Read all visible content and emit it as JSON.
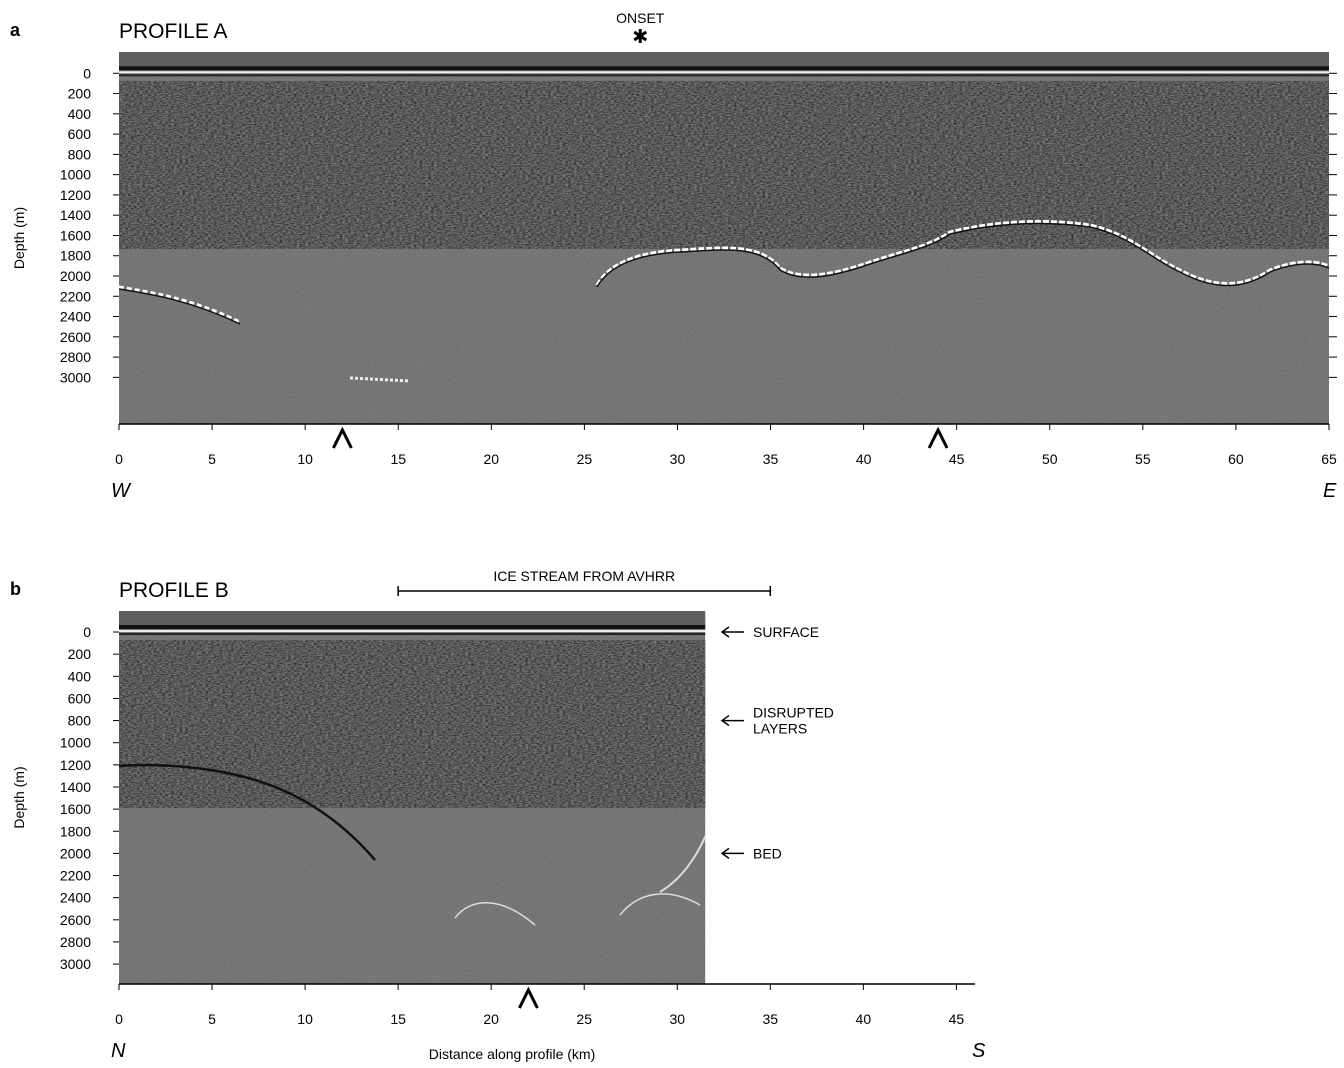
{
  "panels": [
    {
      "letter": "a",
      "title": "PROFILE A",
      "ylabel": "Depth (m)",
      "ylim": [
        -210,
        3460
      ],
      "yticks": [
        0,
        200,
        400,
        600,
        800,
        1000,
        1200,
        1400,
        1600,
        1800,
        2000,
        2200,
        2400,
        2600,
        2800,
        3000
      ],
      "xlim": [
        0,
        65
      ],
      "xticks": [
        0,
        5,
        10,
        15,
        20,
        25,
        30,
        35,
        40,
        45,
        50,
        55,
        60,
        65
      ],
      "image_xlim": [
        0,
        65
      ],
      "left_end": "W",
      "right_end": "E",
      "onset": {
        "label": "ONSET",
        "x": 28
      },
      "carets": [
        12,
        44
      ]
    },
    {
      "letter": "b",
      "title": "PROFILE B",
      "ylabel": "Depth (m)",
      "ylim": [
        -190,
        3180
      ],
      "yticks": [
        0,
        200,
        400,
        600,
        800,
        1000,
        1200,
        1400,
        1600,
        1800,
        2000,
        2200,
        2400,
        2600,
        2800,
        3000
      ],
      "xlim": [
        0,
        46
      ],
      "xticks": [
        0,
        5,
        10,
        15,
        20,
        25,
        30,
        35,
        40,
        45
      ],
      "image_xlim": [
        0,
        31.5
      ],
      "left_end": "N",
      "right_end": "S",
      "xlabel": "Distance along profile (km)",
      "bracket": {
        "label": "ICE STREAM FROM AVHRR",
        "x": [
          15,
          35
        ]
      },
      "callouts": [
        {
          "lines": [
            "SURFACE"
          ],
          "depth": 0
        },
        {
          "lines": [
            "DISRUPTED",
            "LAYERS"
          ],
          "depth": 800
        },
        {
          "lines": [
            "BED"
          ],
          "depth": 2000
        }
      ],
      "carets": [
        22
      ]
    }
  ]
}
